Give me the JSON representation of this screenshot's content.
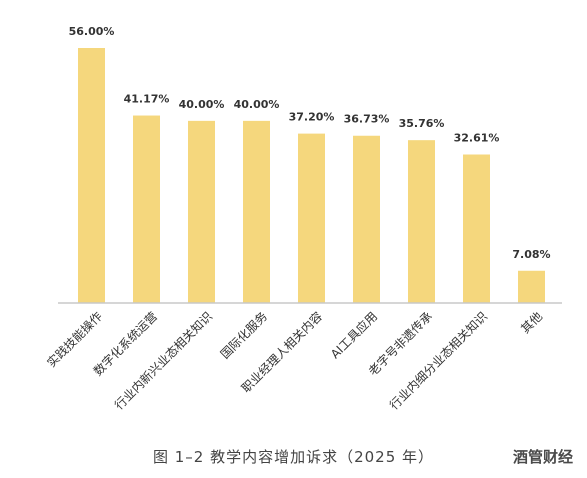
{
  "chart_data": {
    "type": "bar",
    "categories": [
      "实践技能操作",
      "数字化系统运营",
      "行业内新兴业态相关知识",
      "国际化服务",
      "职业经理人相关内容",
      "AI工具应用",
      "老字号非遗传承",
      "行业内细分业态相关知识",
      "其他"
    ],
    "values": [
      56.0,
      41.17,
      40.0,
      40.0,
      37.2,
      36.73,
      35.76,
      32.61,
      7.08
    ],
    "value_labels": [
      "56.00%",
      "41.17%",
      "40.00%",
      "40.00%",
      "37.20%",
      "36.73%",
      "35.76%",
      "32.61%",
      "7.08%"
    ],
    "ylim": [
      0,
      60
    ],
    "grid": false,
    "bar_color": "#f5d77d",
    "axis_color": "#c8c8c8"
  },
  "caption": "图 1–2  教学内容增加诉求（2025 年）",
  "brand": "酒管财经"
}
